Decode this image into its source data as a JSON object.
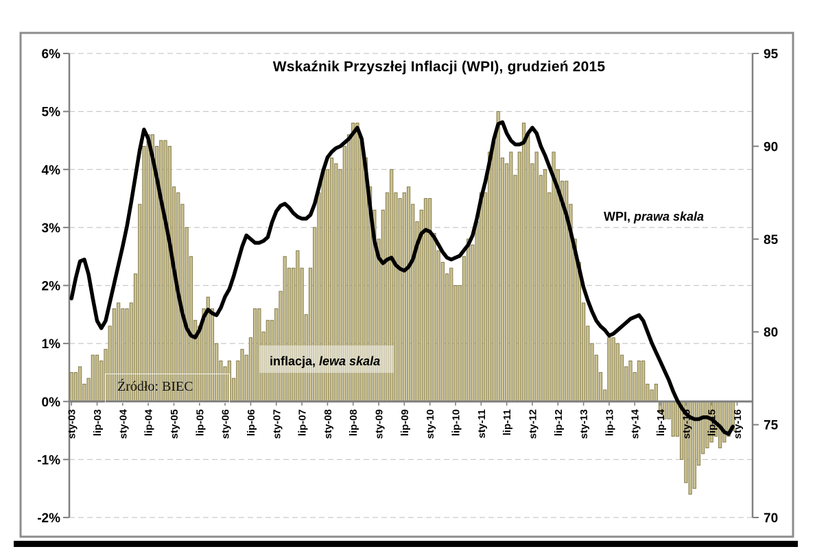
{
  "title": "Wskaźnik Przyszłej Inflacji (WPI), grudzień 2015",
  "annotations": {
    "wpi_prefix": "WPI,",
    "wpi_italic": "prawa skala",
    "inflation_prefix": "inflacja,",
    "inflation_italic": "lewa skala",
    "source": "Źródło: BIEC"
  },
  "colors": {
    "bar_fill": "#C9C08E",
    "bar_stroke": "#7D7448",
    "line": "#000000",
    "grid": "#C9C9C9",
    "axis": "#808080",
    "frame": "#8C8C8C",
    "text": "#000000"
  },
  "chart_data": {
    "type": "combo",
    "x_unit": "month",
    "x_range": [
      "sty-03",
      "sty-16"
    ],
    "x_tick_labels": [
      "sty-03",
      "lip-03",
      "sty-04",
      "lip-04",
      "sty-05",
      "lip-05",
      "sty-06",
      "lip-06",
      "sty-07",
      "lip-07",
      "sty-08",
      "lip-08",
      "sty-09",
      "lip-09",
      "sty-10",
      "lip-10",
      "sty-11",
      "lip-11",
      "sty-12",
      "lip-12",
      "sty-13",
      "lip-13",
      "sty-14",
      "lip-14",
      "sty-15",
      "lip-15",
      "sty-16"
    ],
    "left_axis": {
      "min": -2,
      "max": 6,
      "step": 1,
      "tick_labels": [
        "6%",
        "5%",
        "4%",
        "3%",
        "2%",
        "1%",
        "0%",
        "-1%",
        "-2%"
      ]
    },
    "right_axis": {
      "min": 70,
      "max": 95,
      "step": 5,
      "tick_labels": [
        "95",
        "90",
        "85",
        "80",
        "75",
        "70"
      ],
      "tick_values": [
        95,
        90,
        85,
        80,
        75,
        70
      ]
    },
    "grid": "horizontal-dashed",
    "legend": "none (in-chart text annotations)",
    "series": [
      {
        "name": "inflacja, lewa skala",
        "type": "bar",
        "axis": "left",
        "unit": "% r/r",
        "values": [
          0.5,
          0.5,
          0.6,
          0.3,
          0.4,
          0.8,
          0.8,
          0.7,
          0.9,
          1.3,
          1.6,
          1.7,
          1.6,
          1.6,
          1.7,
          2.2,
          3.4,
          4.4,
          4.6,
          4.6,
          4.4,
          4.5,
          4.5,
          4.4,
          3.7,
          3.6,
          3.4,
          3.0,
          2.5,
          1.4,
          1.3,
          1.6,
          1.8,
          1.6,
          1.0,
          0.7,
          0.6,
          0.7,
          0.4,
          0.7,
          0.9,
          0.8,
          1.1,
          1.6,
          1.6,
          1.2,
          1.4,
          1.4,
          1.6,
          1.9,
          2.5,
          2.3,
          2.3,
          2.6,
          2.3,
          1.5,
          2.3,
          3.0,
          3.6,
          4.0,
          4.0,
          4.2,
          4.1,
          4.0,
          4.4,
          4.6,
          4.8,
          4.8,
          4.5,
          4.2,
          3.7,
          3.3,
          2.8,
          3.3,
          3.6,
          4.0,
          3.6,
          3.5,
          3.6,
          3.7,
          3.4,
          3.1,
          3.3,
          3.5,
          3.5,
          2.9,
          2.6,
          2.4,
          2.2,
          2.3,
          2.0,
          2.0,
          2.5,
          2.8,
          2.7,
          3.1,
          3.6,
          3.6,
          4.3,
          4.5,
          5.0,
          4.2,
          4.1,
          4.3,
          3.9,
          4.3,
          4.8,
          4.6,
          4.1,
          4.3,
          3.9,
          4.0,
          3.6,
          4.3,
          4.0,
          3.8,
          3.8,
          3.4,
          2.8,
          2.4,
          1.7,
          1.3,
          1.0,
          0.8,
          0.5,
          0.2,
          1.1,
          1.1,
          1.0,
          0.8,
          0.6,
          0.7,
          0.5,
          0.7,
          0.7,
          0.3,
          0.2,
          0.3,
          -0.2,
          -0.3,
          -0.3,
          -0.6,
          -0.6,
          -1.0,
          -1.4,
          -1.6,
          -1.5,
          -1.1,
          -0.9,
          -0.8,
          -0.7,
          -0.6,
          -0.8,
          -0.7,
          -0.6,
          -0.5
        ]
      },
      {
        "name": "WPI, prawa skala",
        "type": "line",
        "axis": "right",
        "values": [
          81.8,
          82.9,
          83.8,
          83.9,
          83.1,
          81.8,
          80.6,
          80.2,
          80.6,
          81.6,
          82.6,
          83.6,
          84.6,
          85.7,
          87.0,
          88.4,
          89.8,
          90.9,
          90.4,
          89.4,
          88.3,
          87.1,
          86.0,
          84.8,
          83.4,
          82.1,
          81.0,
          80.2,
          79.8,
          79.7,
          80.1,
          80.8,
          81.2,
          81.0,
          80.9,
          81.3,
          81.9,
          82.3,
          83.0,
          83.8,
          84.6,
          85.2,
          85.0,
          84.8,
          84.8,
          84.9,
          85.1,
          85.9,
          86.5,
          86.8,
          86.9,
          86.7,
          86.4,
          86.2,
          86.1,
          86.1,
          86.3,
          86.9,
          87.8,
          88.7,
          89.4,
          89.7,
          89.9,
          90.0,
          90.2,
          90.4,
          90.7,
          91.0,
          90.4,
          88.7,
          86.7,
          84.9,
          84.0,
          83.7,
          83.9,
          84.0,
          83.6,
          83.4,
          83.3,
          83.5,
          83.9,
          84.7,
          85.3,
          85.5,
          85.4,
          85.1,
          84.7,
          84.3,
          84.0,
          83.9,
          84.0,
          84.1,
          84.4,
          84.7,
          85.2,
          86.1,
          87.2,
          88.1,
          89.2,
          90.4,
          91.2,
          91.3,
          90.7,
          90.3,
          90.1,
          90.1,
          90.2,
          90.7,
          91.0,
          90.7,
          90.0,
          89.5,
          88.9,
          88.3,
          87.7,
          87.0,
          86.3,
          85.4,
          84.4,
          83.4,
          82.4,
          81.7,
          81.1,
          80.6,
          80.3,
          80.1,
          79.8,
          79.9,
          80.1,
          80.3,
          80.5,
          80.7,
          80.8,
          80.9,
          80.6,
          80.0,
          79.4,
          78.9,
          78.4,
          77.9,
          77.4,
          76.8,
          76.3,
          75.9,
          75.6,
          75.4,
          75.3,
          75.3,
          75.4,
          75.4,
          75.3,
          75.1,
          74.9,
          74.6,
          74.5,
          74.9
        ]
      }
    ]
  }
}
